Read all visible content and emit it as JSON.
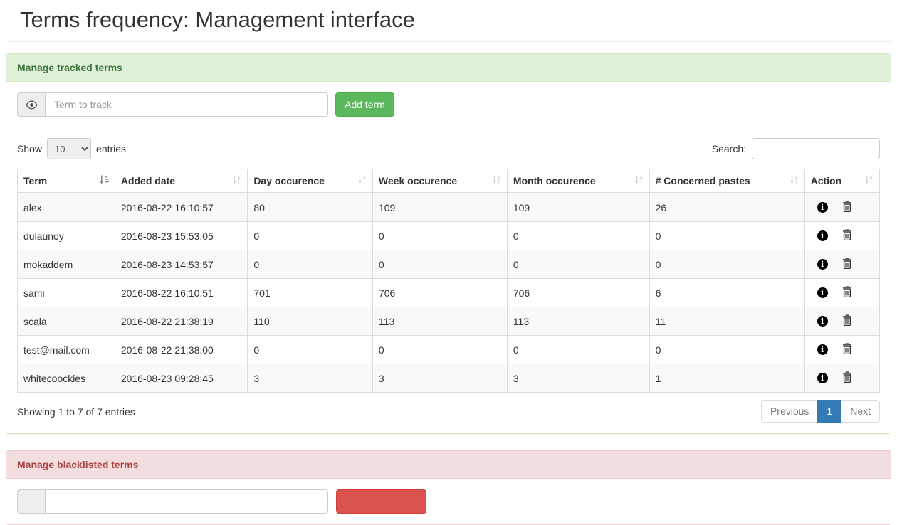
{
  "page": {
    "title": "Terms frequency: Management interface"
  },
  "colors": {
    "success_header_bg": "#dff0d8",
    "success_header_text": "#3c763d",
    "danger_header_bg": "#f2dede",
    "danger_header_text": "#a94442",
    "add_button": "#5cb85c",
    "danger_button": "#d9534f",
    "pagination_active": "#337ab7",
    "row_stripe": "#f9f9f9"
  },
  "tracked_panel": {
    "title": "Manage tracked terms",
    "input_placeholder": "Term to track",
    "input_icon": "eye-icon",
    "add_button_label": "Add term",
    "show_label": "Show",
    "entries_label": "entries",
    "page_length": "10",
    "search_label": "Search:",
    "search_value": "",
    "table": {
      "columns": [
        "Term",
        "Added date",
        "Day occurence",
        "Week occurence",
        "Month occurence",
        "# Concerned pastes",
        "Action"
      ],
      "sorted_column": "Term",
      "sort_direction": "asc",
      "action_icons": [
        "info-circle-icon",
        "trash-icon"
      ],
      "rows": [
        {
          "term": "alex",
          "added": "2016-08-22 16:10:57",
          "day": "80",
          "week": "109",
          "month": "109",
          "pastes": "26"
        },
        {
          "term": "dulaunoy",
          "added": "2016-08-23 15:53:05",
          "day": "0",
          "week": "0",
          "month": "0",
          "pastes": "0"
        },
        {
          "term": "mokaddem",
          "added": "2016-08-23 14:53:57",
          "day": "0",
          "week": "0",
          "month": "0",
          "pastes": "0"
        },
        {
          "term": "sami",
          "added": "2016-08-22 16:10:51",
          "day": "701",
          "week": "706",
          "month": "706",
          "pastes": "6"
        },
        {
          "term": "scala",
          "added": "2016-08-22 21:38:19",
          "day": "110",
          "week": "113",
          "month": "113",
          "pastes": "11"
        },
        {
          "term": "test@mail.com",
          "added": "2016-08-22 21:38:00",
          "day": "0",
          "week": "0",
          "month": "0",
          "pastes": "0"
        },
        {
          "term": "whitecoockies",
          "added": "2016-08-23 09:28:45",
          "day": "3",
          "week": "3",
          "month": "3",
          "pastes": "1"
        }
      ]
    },
    "info_text": "Showing 1 to 7 of 7 entries",
    "pagination": {
      "previous": "Previous",
      "current": "1",
      "next": "Next"
    }
  },
  "blacklist_panel": {
    "title": "Manage blacklisted terms",
    "input_value": ""
  }
}
